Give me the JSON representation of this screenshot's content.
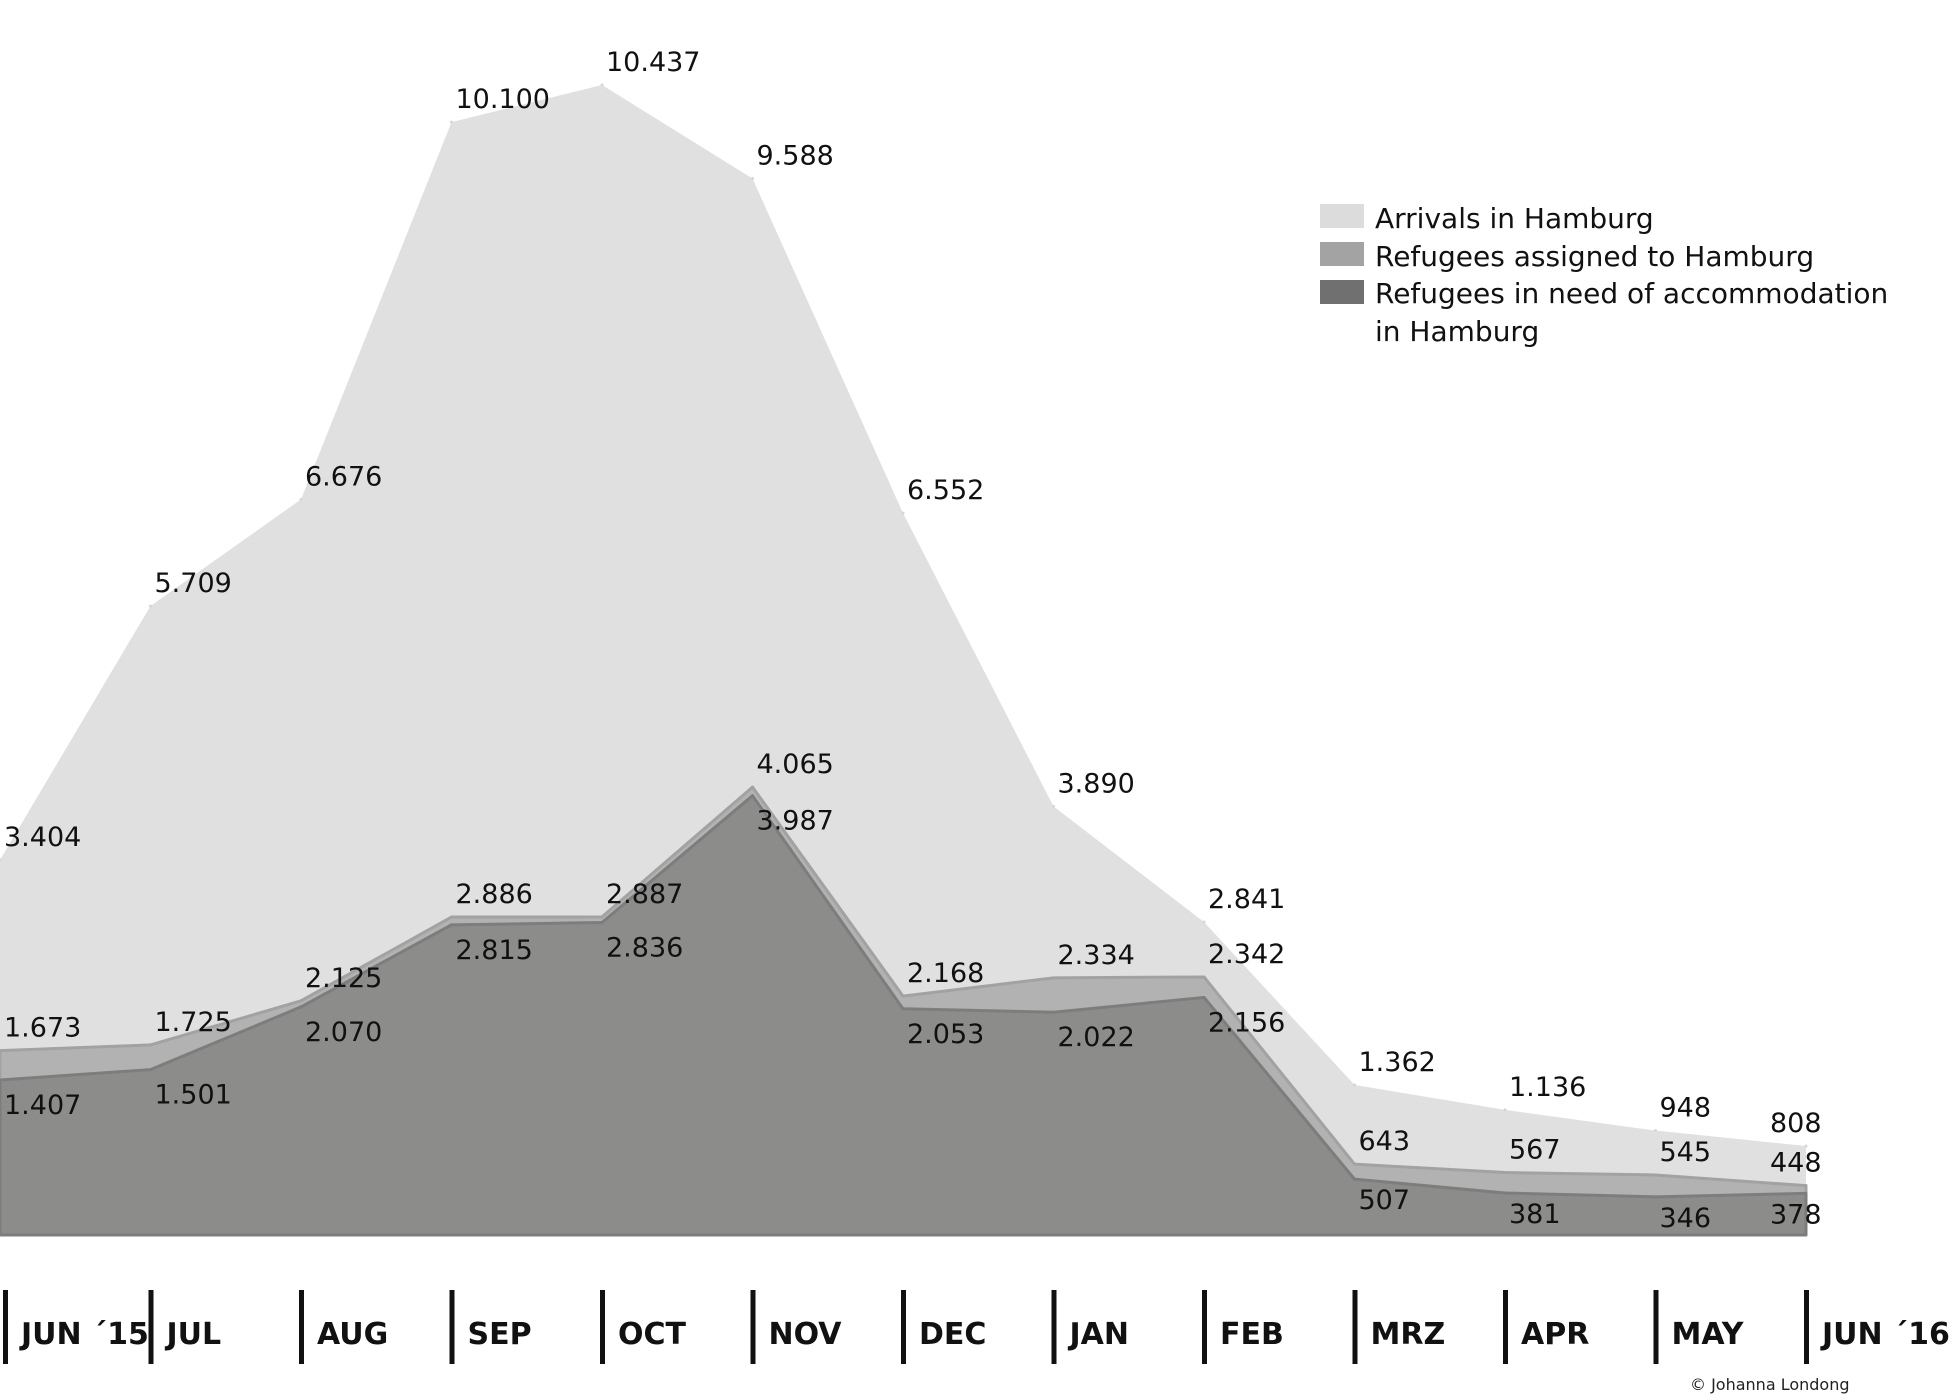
{
  "chart_data": {
    "type": "area",
    "categories": [
      "JUN ´15",
      "JUL",
      "AUG",
      "SEP",
      "OCT",
      "NOV",
      "DEC",
      "JAN",
      "FEB",
      "MRZ",
      "APR",
      "MAY",
      "JUN ´16"
    ],
    "series": [
      {
        "name": "Arrivals in Hamburg",
        "color": "#e0e0e0",
        "values": [
          3404,
          5709,
          6676,
          10100,
          10437,
          9588,
          6552,
          3890,
          2841,
          1362,
          1136,
          948,
          808
        ],
        "labels": [
          "3.404",
          "5.709",
          "6.676",
          "10.100",
          "10.437",
          "9.588",
          "6.552",
          "3.890",
          "2.841",
          "1.362",
          "1.136",
          "948",
          "808"
        ]
      },
      {
        "name": "Refugees assigned to Hamburg",
        "color": "#b2b2b2",
        "values": [
          1673,
          1725,
          2125,
          2886,
          2887,
          4065,
          2168,
          2334,
          2342,
          643,
          567,
          545,
          448
        ],
        "labels": [
          "1.673",
          "1.725",
          "2.125",
          "2.886",
          "2.887",
          "4.065",
          "2.168",
          "2.334",
          "2.342",
          "643",
          "567",
          "545",
          "448"
        ]
      },
      {
        "name": "Refugees in need of accommodation in Hamburg",
        "color": "#8c8c8b",
        "values": [
          1407,
          1501,
          2070,
          2815,
          2836,
          3987,
          2053,
          2022,
          2156,
          507,
          381,
          346,
          378
        ],
        "labels": [
          "1.407",
          "1.501",
          "2.070",
          "2.815",
          "2.836",
          "3.987",
          "2.053",
          "2.022",
          "2.156",
          "507",
          "381",
          "346",
          "378"
        ]
      }
    ],
    "legend": {
      "position": "top-right",
      "items": [
        {
          "text": "Arrivals in Hamburg",
          "color": "#dcdcdc"
        },
        {
          "text": "Refugees assigned to Hamburg",
          "color": "#a3a3a3"
        },
        {
          "text": "Refugees in need of accommodation",
          "text2": "in Hamburg",
          "color": "#707070"
        }
      ]
    },
    "ylim": [
      0,
      11300
    ],
    "grid": false,
    "credit": "© Johanna Londong"
  }
}
